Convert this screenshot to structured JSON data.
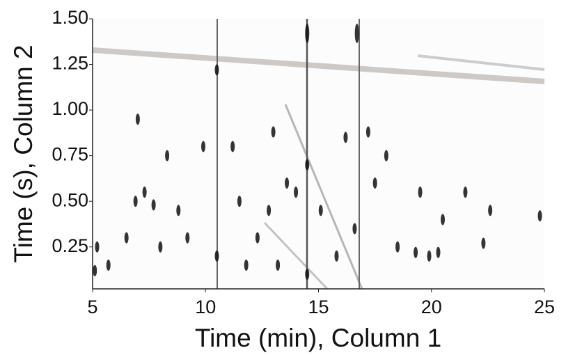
{
  "chart_data": {
    "type": "scatter",
    "x_label": "Time (min), Column 1",
    "y_label": "Time (s), Column 2",
    "xlim": [
      5,
      25
    ],
    "xticks": [
      5,
      10,
      15,
      20,
      25
    ],
    "ylim": [
      0.02,
      1.5
    ],
    "yticks": [
      {
        "value": 0.25,
        "label": "0.25"
      },
      {
        "value": 0.5,
        "label": "0.50"
      },
      {
        "value": 0.75,
        "label": "0.75"
      },
      {
        "value": 1.0,
        "label": "1.00"
      },
      {
        "value": 1.25,
        "label": "1.25"
      },
      {
        "value": 1.5,
        "label": "1.50"
      }
    ],
    "color": "#111111",
    "x": [
      5.1,
      5.2,
      5.7,
      6.5,
      6.9,
      7.3,
      7.7,
      8.0,
      8.3,
      8.8,
      9.2,
      9.9,
      10.5,
      10.5,
      11.2,
      11.5,
      12.3,
      12.8,
      13.0,
      13.6,
      14.0,
      14.5,
      14.5,
      14.5,
      15.1,
      15.8,
      16.7,
      16.6,
      17.2,
      17.5,
      18.0,
      18.5,
      19.3,
      19.9,
      20.3,
      20.5,
      21.5,
      22.3,
      22.6,
      24.8,
      7.0,
      16.2,
      19.5,
      11.8,
      13.2
    ],
    "values": [
      0.12,
      0.25,
      0.15,
      0.3,
      0.5,
      0.55,
      0.48,
      0.25,
      0.75,
      0.45,
      0.3,
      0.8,
      1.22,
      0.2,
      0.8,
      0.5,
      0.3,
      0.45,
      0.88,
      0.6,
      0.55,
      1.42,
      0.7,
      0.1,
      0.45,
      0.2,
      1.42,
      0.35,
      0.88,
      0.6,
      0.75,
      0.25,
      0.22,
      0.2,
      0.22,
      0.4,
      0.55,
      0.27,
      0.45,
      0.42,
      0.95,
      0.85,
      0.55,
      0.15,
      0.15
    ]
  }
}
